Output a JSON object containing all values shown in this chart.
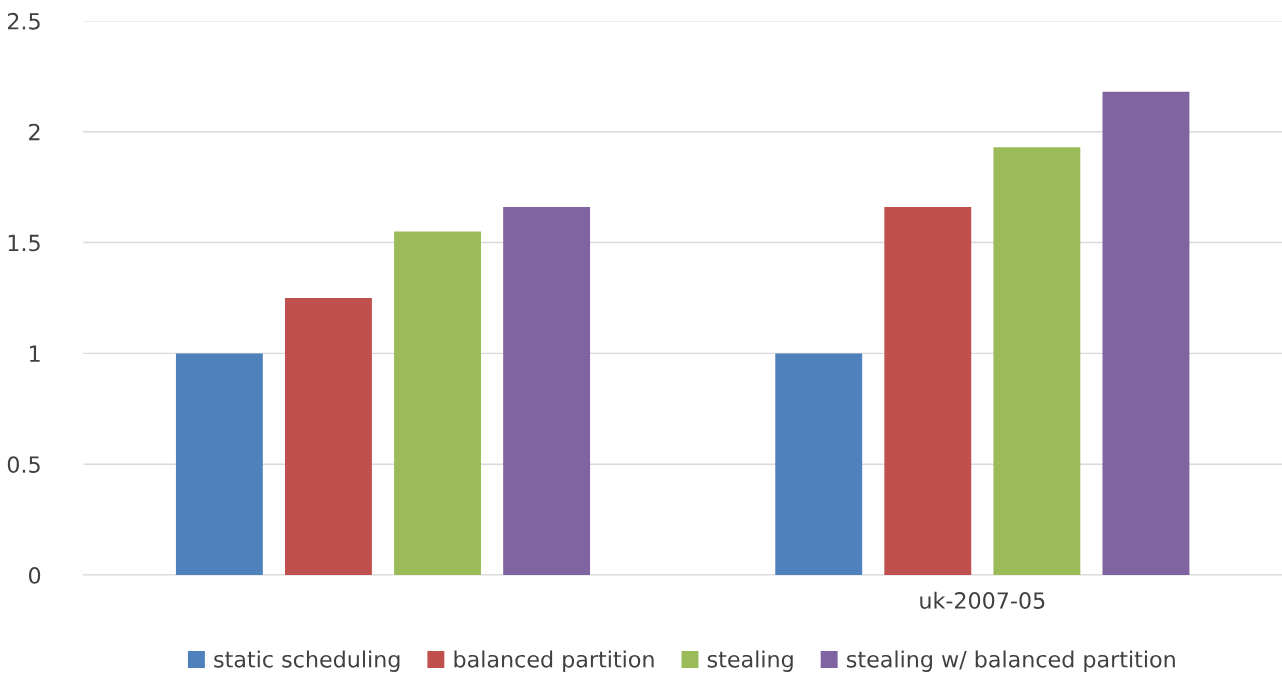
{
  "chart_data": {
    "type": "bar",
    "categories": [
      null,
      "uk-2007-05"
    ],
    "series": [
      {
        "name": "static scheduling",
        "color": "#4f81bd",
        "values": [
          1,
          1
        ]
      },
      {
        "name": "balanced partition",
        "color": "#c0504d",
        "values": [
          1.25,
          1.66
        ]
      },
      {
        "name": "stealing",
        "color": "#9bbb59",
        "values": [
          1.55,
          1.93
        ]
      },
      {
        "name": "stealing w/ balanced partition",
        "color": "#8064a2",
        "values": [
          1.66,
          2.18
        ]
      }
    ],
    "ylim": [
      0,
      2.5
    ],
    "yticks": [
      0,
      {
        "value": 0.5,
        "label": "0.5"
      },
      1,
      {
        "value": 1.5,
        "label": "1.5"
      },
      2,
      {
        "value": 2.5,
        "label": "2.5"
      }
    ],
    "grid": "y",
    "legend": "bottom"
  }
}
